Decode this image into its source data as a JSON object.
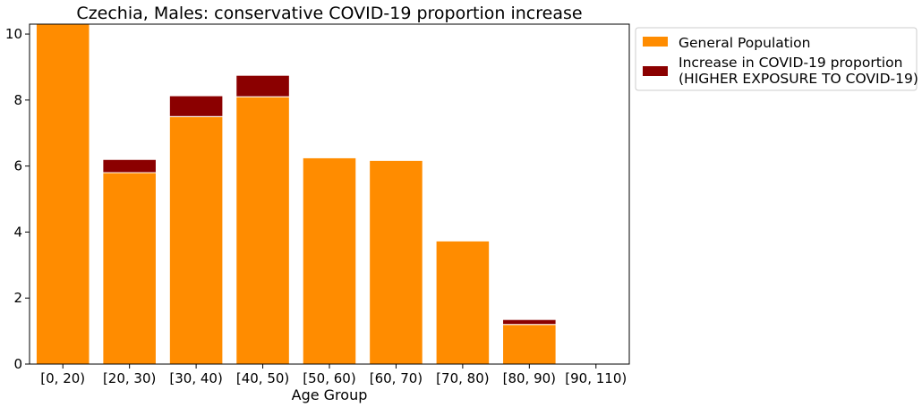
{
  "chart_data": {
    "type": "bar",
    "stacked": true,
    "title": "Czechia, Males: conservative COVID-19 proportion increase",
    "xlabel": "Age Group",
    "ylabel": "",
    "categories": [
      "[0, 20)",
      "[20, 30)",
      "[30, 40)",
      "[40, 50)",
      "[50, 60)",
      "[60, 70)",
      "[70, 80)",
      "[80, 90)",
      "[90, 110)"
    ],
    "ylim": [
      0,
      10.3
    ],
    "yticks": [
      0,
      2,
      4,
      6,
      8,
      10
    ],
    "grid": false,
    "legend_position": "outside-top-right",
    "series": [
      {
        "name": "General Population",
        "color": "#ff8c00",
        "values": [
          10.6,
          5.8,
          7.5,
          8.1,
          6.25,
          6.17,
          3.73,
          1.2,
          0.0
        ]
      },
      {
        "name": "Increase in COVID-19 proportion\n(HIGHER EXPOSURE TO COVID-19)",
        "color": "#8b0000",
        "values": [
          0.0,
          0.4,
          0.63,
          0.65,
          0.0,
          0.0,
          0.0,
          0.15,
          0.0
        ]
      }
    ]
  }
}
